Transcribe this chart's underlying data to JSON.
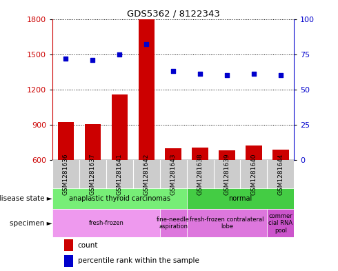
{
  "title": "GDS5362 / 8122343",
  "samples": [
    "GSM1281636",
    "GSM1281637",
    "GSM1281641",
    "GSM1281642",
    "GSM1281643",
    "GSM1281638",
    "GSM1281639",
    "GSM1281640",
    "GSM1281644"
  ],
  "counts": [
    920,
    905,
    1155,
    1800,
    700,
    705,
    680,
    720,
    685
  ],
  "percentiles": [
    72,
    71,
    75,
    82,
    63,
    61,
    60,
    61,
    60
  ],
  "ylim_left": [
    600,
    1800
  ],
  "ylim_right": [
    0,
    100
  ],
  "yticks_left": [
    600,
    900,
    1200,
    1500,
    1800
  ],
  "yticks_right": [
    0,
    25,
    50,
    75,
    100
  ],
  "bar_color": "#cc0000",
  "dot_color": "#0000cc",
  "bar_width": 0.6,
  "xtick_bg_color": "#cccccc",
  "disease_groups": [
    {
      "label": "anaplastic thyroid carcinomas",
      "start": 0,
      "end": 5,
      "color": "#77ee77"
    },
    {
      "label": "normal",
      "start": 5,
      "end": 9,
      "color": "#44cc44"
    }
  ],
  "specimen_groups": [
    {
      "label": "fresh-frozen",
      "start": 0,
      "end": 4,
      "color": "#ee99ee"
    },
    {
      "label": "fine-needle\naspiration",
      "start": 4,
      "end": 5,
      "color": "#dd77dd"
    },
    {
      "label": "fresh-frozen contralateral\nlobe",
      "start": 5,
      "end": 8,
      "color": "#dd77dd"
    },
    {
      "label": "commer\ncial RNA\npool",
      "start": 8,
      "end": 9,
      "color": "#cc55cc"
    }
  ],
  "legend_count": "count",
  "legend_percentile": "percentile rank within the sample",
  "label_disease_state": "disease state",
  "label_specimen": "specimen"
}
